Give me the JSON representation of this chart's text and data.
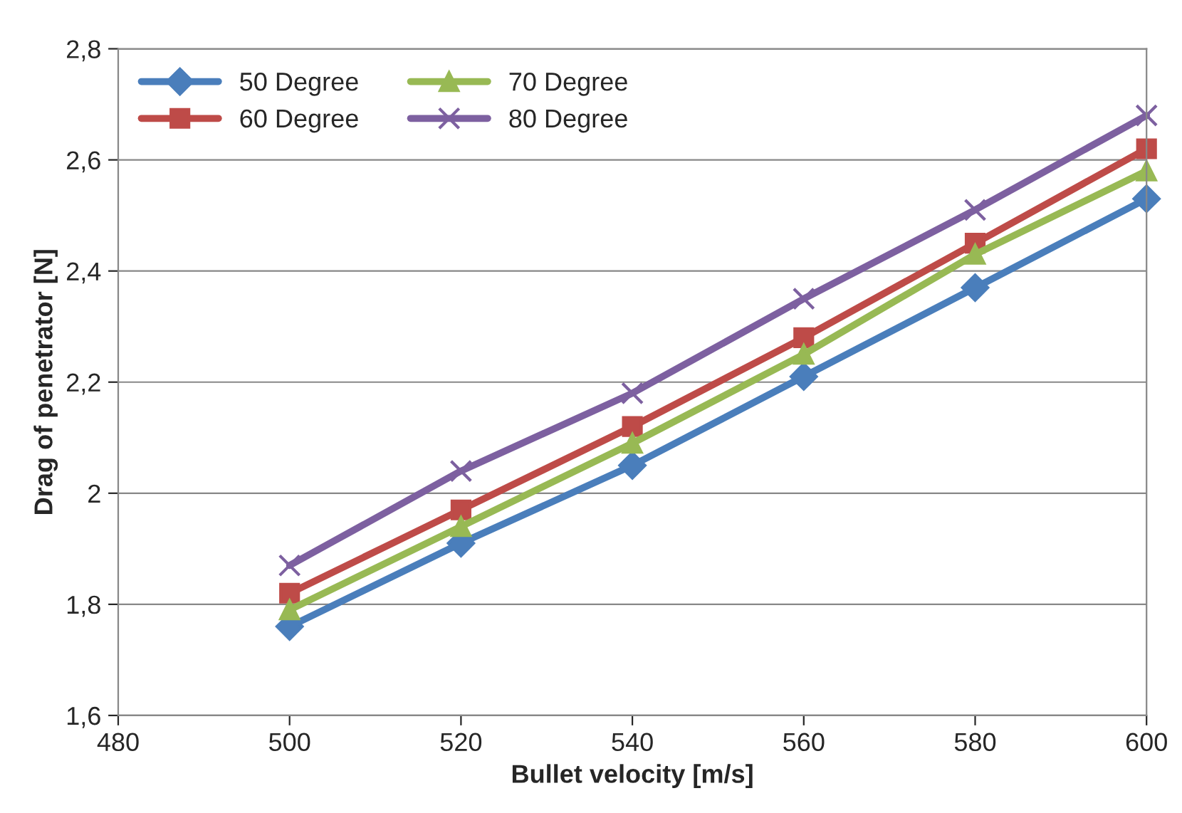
{
  "chart_data": {
    "type": "line",
    "xlabel": "Bullet velocity [m/s]",
    "ylabel": "Drag of penetrator [N]",
    "x": [
      500,
      520,
      540,
      560,
      580,
      600
    ],
    "series": [
      {
        "name": "50 Degree",
        "color": "#4a7ebb",
        "marker": "diamond",
        "values": [
          1.76,
          1.91,
          2.05,
          2.21,
          2.37,
          2.53
        ]
      },
      {
        "name": "60 Degree",
        "color": "#be4b48",
        "marker": "square",
        "values": [
          1.82,
          1.97,
          2.12,
          2.28,
          2.45,
          2.62
        ]
      },
      {
        "name": "70 Degree",
        "color": "#98b954",
        "marker": "triangle",
        "values": [
          1.79,
          1.94,
          2.09,
          2.25,
          2.43,
          2.58
        ]
      },
      {
        "name": "80 Degree",
        "color": "#7d60a0",
        "marker": "cross",
        "values": [
          1.87,
          2.04,
          2.18,
          2.35,
          2.51,
          2.68
        ]
      }
    ],
    "xlim": [
      480,
      600
    ],
    "xticks": [
      480,
      500,
      520,
      540,
      560,
      580,
      600
    ],
    "ylim": [
      1.6,
      2.8
    ],
    "yticks": [
      {
        "value": 1.6,
        "label": "1,6"
      },
      {
        "value": 1.8,
        "label": "1,8"
      },
      2,
      {
        "value": 2.2,
        "label": "2,2"
      },
      {
        "value": 2.4,
        "label": "2,4"
      },
      {
        "value": 2.6,
        "label": "2,6"
      },
      {
        "value": 2.8,
        "label": "2,8"
      }
    ],
    "grid": "y",
    "legend": "top left",
    "line_style": "solid"
  }
}
